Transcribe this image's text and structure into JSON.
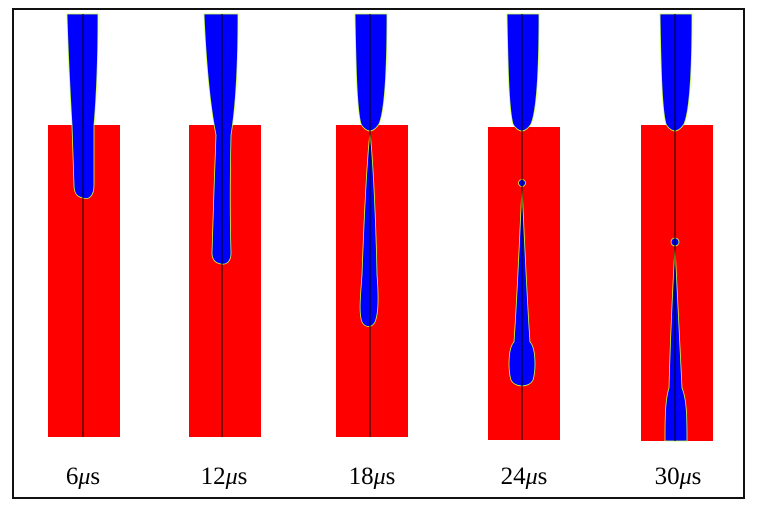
{
  "colors": {
    "substrate": "#ff0000",
    "fluid": "#0000ff",
    "centerline": "#000000",
    "interface_edge": "#c8ff40",
    "frame": "#111111",
    "background": "#ffffff"
  },
  "panels": [
    {
      "number": "6",
      "unit_greek": "μ",
      "unit_rest": "s"
    },
    {
      "number": "12",
      "unit_greek": "μ",
      "unit_rest": "s"
    },
    {
      "number": "18",
      "unit_greek": "μ",
      "unit_rest": "s"
    },
    {
      "number": "24",
      "unit_greek": "μ",
      "unit_rest": "s"
    },
    {
      "number": "30",
      "unit_greek": "μ",
      "unit_rest": "s"
    }
  ]
}
